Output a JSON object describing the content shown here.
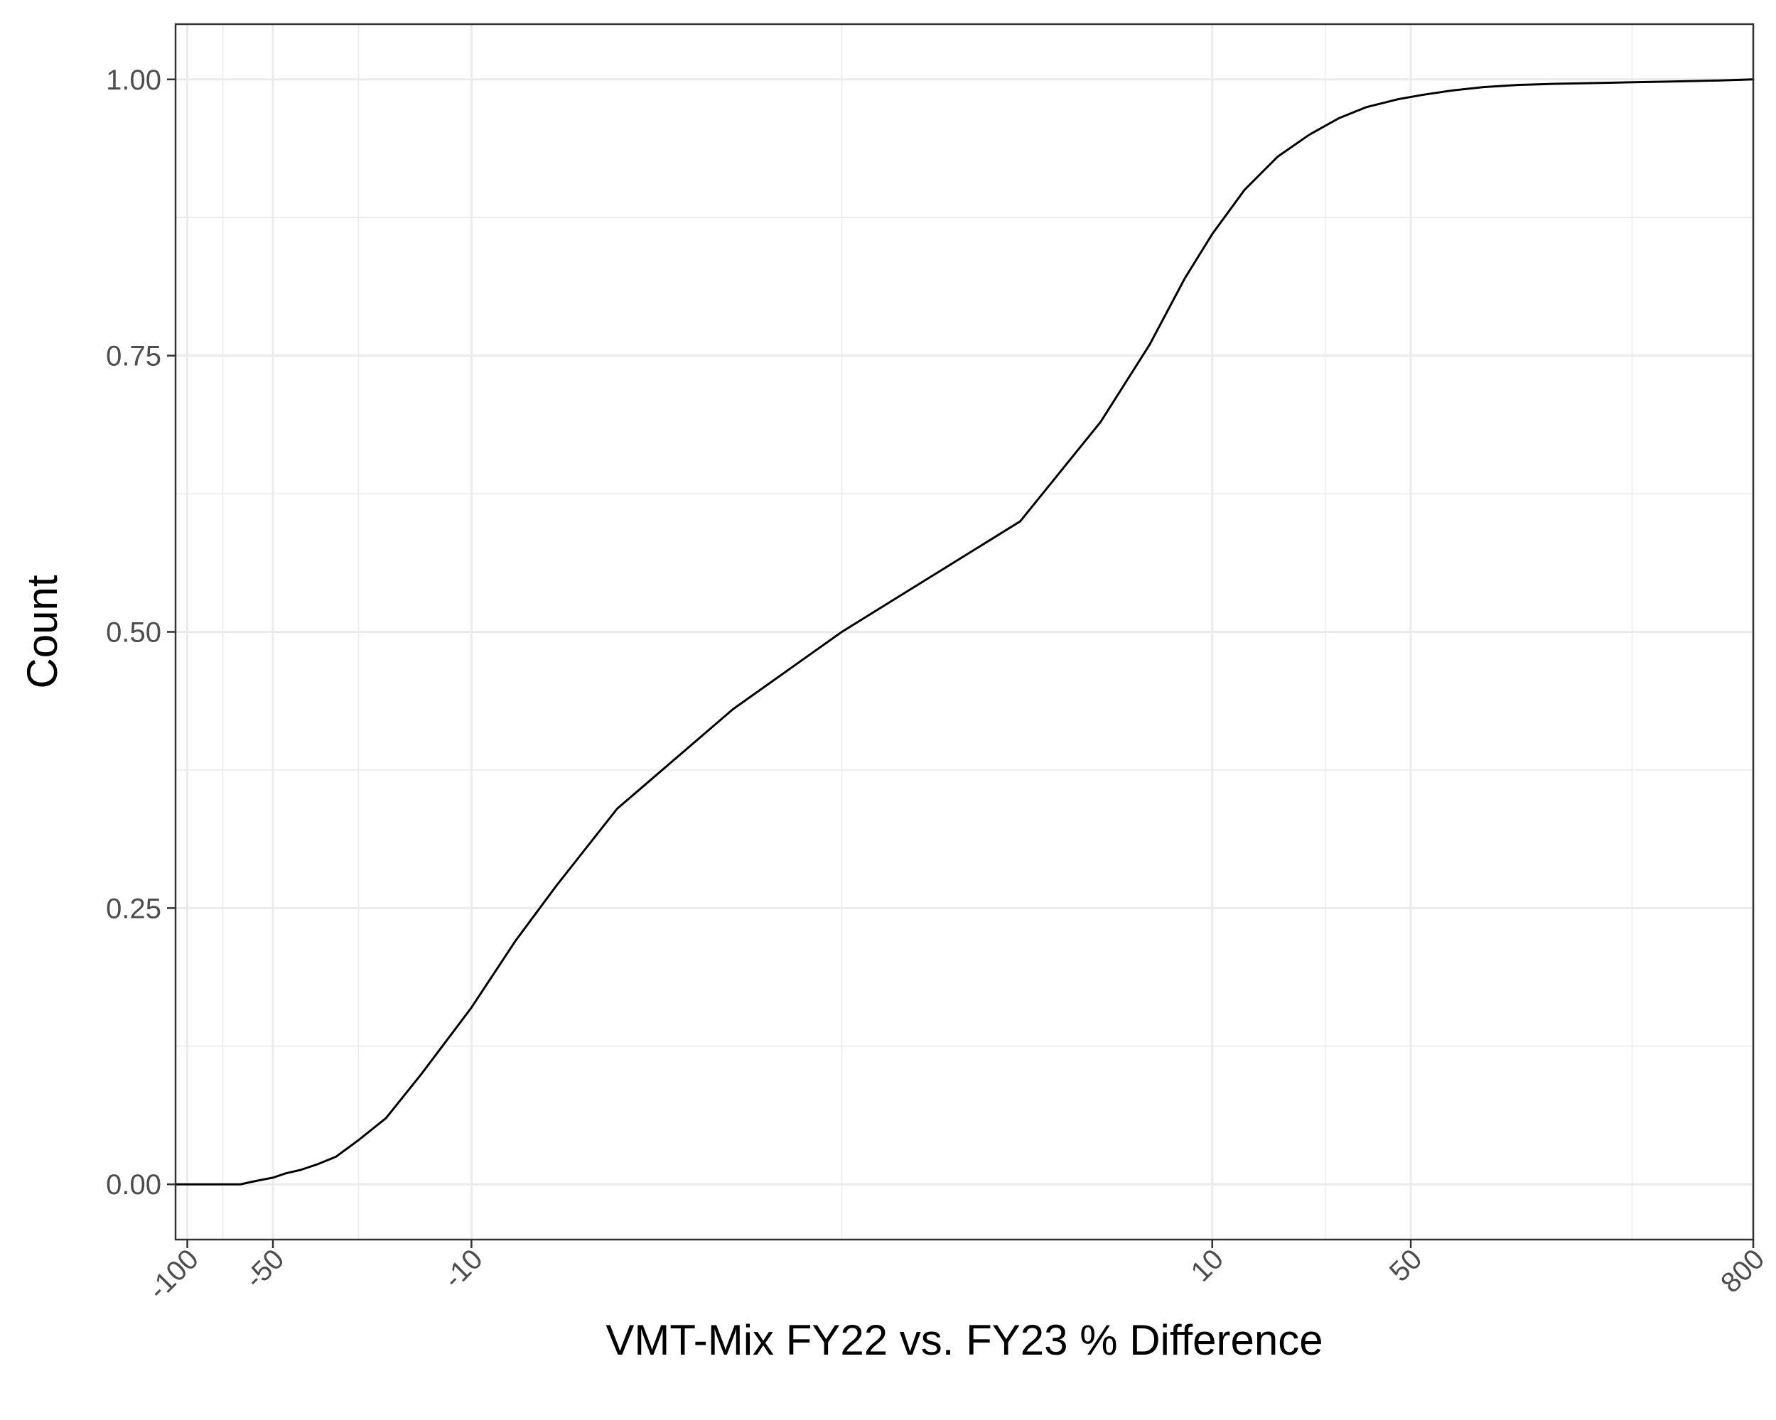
{
  "chart_data": {
    "type": "line",
    "subtype": "ecdf",
    "title": "",
    "xlabel": "VMT-Mix FY22 vs. FY23 % Difference",
    "ylabel": "Count",
    "x_scale": "asinh",
    "xlim": [
      -110,
      800
    ],
    "ylim": [
      -0.05,
      1.05
    ],
    "x_ticks": [
      -100,
      -50,
      -10,
      10,
      50,
      800
    ],
    "x_tick_labels": [
      "-100",
      "-50",
      "-10",
      "10",
      "50",
      "800"
    ],
    "x_minor_ticks": [
      -75,
      -25,
      0,
      25,
      300
    ],
    "y_ticks": [
      0,
      0.25,
      0.5,
      0.75,
      1.0
    ],
    "y_tick_labels": [
      "0.00",
      "0.25",
      "0.50",
      "0.75",
      "1.00"
    ],
    "grid": true,
    "legend": "none",
    "series": [
      {
        "color": "#000000",
        "points": [
          [
            -110,
            0.0
          ],
          [
            -100,
            0.0
          ],
          [
            -80,
            0.0
          ],
          [
            -70,
            0.0
          ],
          [
            -65,
            0.0
          ],
          [
            -60,
            0.002
          ],
          [
            -55,
            0.004
          ],
          [
            -50,
            0.006
          ],
          [
            -45,
            0.01
          ],
          [
            -40,
            0.013
          ],
          [
            -35,
            0.018
          ],
          [
            -30,
            0.025
          ],
          [
            -25,
            0.04
          ],
          [
            -20,
            0.06
          ],
          [
            -15,
            0.1
          ],
          [
            -10,
            0.16
          ],
          [
            -7,
            0.22
          ],
          [
            -5,
            0.27
          ],
          [
            -3,
            0.34
          ],
          [
            -1,
            0.43
          ],
          [
            0,
            0.5
          ],
          [
            2,
            0.6
          ],
          [
            4,
            0.69
          ],
          [
            6,
            0.76
          ],
          [
            8,
            0.82
          ],
          [
            10,
            0.86
          ],
          [
            13,
            0.9
          ],
          [
            17,
            0.93
          ],
          [
            22,
            0.95
          ],
          [
            28,
            0.965
          ],
          [
            35,
            0.975
          ],
          [
            45,
            0.982
          ],
          [
            55,
            0.986
          ],
          [
            70,
            0.99
          ],
          [
            90,
            0.993
          ],
          [
            120,
            0.995
          ],
          [
            160,
            0.996
          ],
          [
            250,
            0.997
          ],
          [
            400,
            0.998
          ],
          [
            600,
            0.999
          ],
          [
            800,
            1.0
          ]
        ]
      }
    ]
  }
}
